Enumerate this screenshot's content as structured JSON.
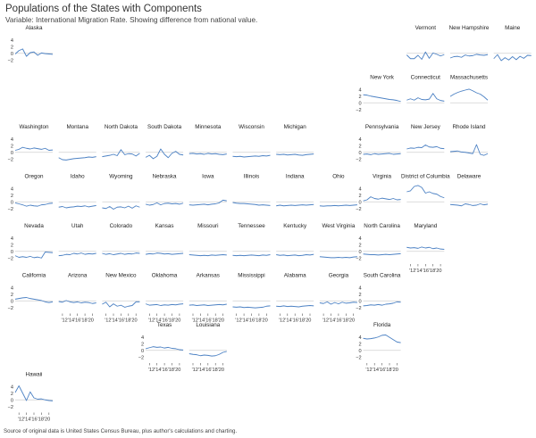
{
  "title": "Populations of the States with Components",
  "subtitle": "Variable: International Migration Rate. Showing difference from national value.",
  "source": "Source of original data is United States Census Bureau, plus author's calculations and charting.",
  "colors": {
    "line": "#4d82c4",
    "zero": "#d0d0d0",
    "panel_bg": "#ffffff",
    "text": "#333333"
  },
  "chart_data": {
    "type": "line",
    "layout": "small-multiples state grid map",
    "x": [
      2011,
      2012,
      2013,
      2014,
      2015,
      2016,
      2017,
      2018,
      2019,
      2020,
      2021
    ],
    "x_tick_labels": [
      "'12",
      "'14",
      "'16",
      "'18",
      "'20"
    ],
    "ylim": [
      -3,
      5
    ],
    "y_ticks": [
      4,
      2,
      0,
      -2
    ],
    "zero_line": true,
    "grid": false,
    "panels": [
      {
        "name": "Alaska",
        "col": 0,
        "row": 0,
        "values": [
          -0.2,
          0.8,
          1.3,
          -0.9,
          0.2,
          0.4,
          -0.6,
          0.1,
          -0.1,
          -0.2,
          -0.3
        ],
        "y_axis": true
      },
      {
        "name": "Vermont",
        "col": 9,
        "row": 0,
        "values": [
          -0.5,
          -1.6,
          -1.6,
          -0.6,
          -1.8,
          0.4,
          -1.5,
          0.1,
          -0.3,
          -0.8,
          -0.4
        ]
      },
      {
        "name": "New Hampshire",
        "col": 10,
        "row": 0,
        "values": [
          -1.4,
          -1.0,
          -0.9,
          -1.2,
          -0.5,
          -0.8,
          -0.7,
          -0.3,
          -0.5,
          -0.6,
          -0.4
        ]
      },
      {
        "name": "Maine",
        "col": 11,
        "row": 0,
        "values": [
          -1.6,
          -0.4,
          -2.2,
          -1.3,
          -2.0,
          -1.0,
          -1.9,
          -0.9,
          -1.5,
          -0.6,
          -0.7
        ]
      },
      {
        "name": "New York",
        "col": 8,
        "row": 1,
        "values": [
          2.4,
          2.3,
          2.0,
          1.8,
          1.6,
          1.4,
          1.2,
          1.0,
          0.9,
          0.7,
          0.4
        ],
        "y_axis": true
      },
      {
        "name": "Connecticut",
        "col": 9,
        "row": 1,
        "values": [
          0.8,
          1.2,
          0.8,
          1.5,
          1.0,
          0.9,
          1.1,
          2.8,
          1.2,
          0.7,
          0.5
        ]
      },
      {
        "name": "Massachusetts",
        "col": 10,
        "row": 1,
        "values": [
          1.9,
          2.6,
          3.1,
          3.5,
          3.8,
          4.1,
          3.6,
          3.0,
          2.6,
          1.8,
          0.8
        ]
      },
      {
        "name": "Washington",
        "col": 0,
        "row": 2,
        "values": [
          0.6,
          0.9,
          1.5,
          1.2,
          1.0,
          1.3,
          1.1,
          0.9,
          1.2,
          0.6,
          0.7
        ],
        "y_axis": true
      },
      {
        "name": "Montana",
        "col": 1,
        "row": 2,
        "values": [
          -1.6,
          -2.2,
          -2.3,
          -2.1,
          -1.9,
          -1.8,
          -1.7,
          -1.6,
          -1.4,
          -1.5,
          -1.3
        ]
      },
      {
        "name": "North Dakota",
        "col": 2,
        "row": 2,
        "values": [
          -1.3,
          -1.1,
          -0.9,
          -0.6,
          -1.0,
          0.8,
          -0.7,
          -0.4,
          -0.5,
          -1.1,
          -0.3
        ]
      },
      {
        "name": "South Dakota",
        "col": 3,
        "row": 2,
        "values": [
          -1.5,
          -0.9,
          -1.9,
          -1.2,
          1.0,
          -0.6,
          -1.6,
          -0.3,
          0.3,
          -0.6,
          -0.8
        ]
      },
      {
        "name": "Minnesota",
        "col": 4,
        "row": 2,
        "values": [
          -0.4,
          -0.3,
          -0.5,
          -0.4,
          -0.6,
          -0.3,
          -0.5,
          -0.4,
          -0.6,
          -0.7,
          -0.5
        ]
      },
      {
        "name": "Wisconsin",
        "col": 5,
        "row": 2,
        "values": [
          -1.2,
          -1.3,
          -1.2,
          -1.4,
          -1.3,
          -1.2,
          -1.1,
          -1.2,
          -1.0,
          -1.1,
          -0.9
        ]
      },
      {
        "name": "Michigan",
        "col": 6,
        "row": 2,
        "values": [
          -0.6,
          -0.7,
          -0.6,
          -0.8,
          -0.7,
          -0.6,
          -0.8,
          -0.9,
          -0.7,
          -0.6,
          -0.5
        ]
      },
      {
        "name": "Pennsylvania",
        "col": 8,
        "row": 2,
        "values": [
          -0.6,
          -0.5,
          -0.7,
          -0.4,
          -0.6,
          -0.5,
          -0.4,
          -0.3,
          -0.6,
          -0.5,
          -0.4
        ],
        "y_axis": true
      },
      {
        "name": "New Jersey",
        "col": 9,
        "row": 2,
        "values": [
          1.0,
          1.3,
          1.2,
          1.5,
          1.4,
          2.2,
          1.6,
          1.5,
          1.7,
          1.2,
          1.1
        ]
      },
      {
        "name": "Rhode Island",
        "col": 10,
        "row": 2,
        "values": [
          0.2,
          0.3,
          0.4,
          0.1,
          0.0,
          -0.2,
          -0.4,
          2.3,
          -0.6,
          -0.9,
          -0.4
        ]
      },
      {
        "name": "Oregon",
        "col": 0,
        "row": 3,
        "values": [
          -0.3,
          -0.6,
          -0.9,
          -1.3,
          -1.0,
          -1.2,
          -1.3,
          -0.9,
          -0.8,
          -0.5,
          -0.4
        ],
        "y_axis": true
      },
      {
        "name": "Idaho",
        "col": 1,
        "row": 3,
        "values": [
          -1.6,
          -1.4,
          -1.8,
          -1.6,
          -1.5,
          -1.3,
          -1.4,
          -1.2,
          -1.5,
          -1.3,
          -1.1
        ]
      },
      {
        "name": "Wyoming",
        "col": 2,
        "row": 3,
        "values": [
          -1.8,
          -2.0,
          -1.4,
          -2.2,
          -1.6,
          -1.5,
          -1.8,
          -1.3,
          -1.9,
          -1.2,
          -1.6
        ]
      },
      {
        "name": "Nebraska",
        "col": 3,
        "row": 3,
        "values": [
          -0.7,
          -1.0,
          -0.8,
          -0.3,
          -0.9,
          -0.5,
          -0.4,
          -0.6,
          -0.5,
          -0.7,
          -0.4
        ]
      },
      {
        "name": "Iowa",
        "col": 4,
        "row": 3,
        "values": [
          -0.9,
          -1.0,
          -0.9,
          -0.8,
          -0.7,
          -0.9,
          -0.7,
          -0.6,
          -0.3,
          0.5,
          0.3
        ]
      },
      {
        "name": "Illinois",
        "col": 5,
        "row": 3,
        "values": [
          -0.2,
          -0.4,
          -0.5,
          -0.5,
          -0.6,
          -0.7,
          -0.8,
          -1.0,
          -0.9,
          -1.0,
          -1.1
        ]
      },
      {
        "name": "Indiana",
        "col": 6,
        "row": 3,
        "values": [
          -1.2,
          -1.0,
          -1.2,
          -1.1,
          -1.0,
          -1.1,
          -1.0,
          -0.9,
          -1.0,
          -0.9,
          -0.8
        ]
      },
      {
        "name": "Ohio",
        "col": 7,
        "row": 3,
        "values": [
          -1.2,
          -1.3,
          -1.2,
          -1.2,
          -1.1,
          -1.2,
          -1.1,
          -1.0,
          -1.1,
          -1.0,
          -0.9
        ]
      },
      {
        "name": "Virginia",
        "col": 8,
        "row": 3,
        "values": [
          0.3,
          0.6,
          1.5,
          1.0,
          0.8,
          1.1,
          0.9,
          0.7,
          1.0,
          0.6,
          0.7
        ],
        "y_axis": true
      },
      {
        "name": "District of Columbia",
        "col": 9,
        "row": 3,
        "values": [
          3.0,
          3.3,
          4.6,
          4.9,
          4.3,
          2.6,
          3.0,
          2.5,
          2.3,
          1.6,
          1.2
        ]
      },
      {
        "name": "Delaware",
        "col": 10,
        "row": 3,
        "values": [
          -0.8,
          -0.9,
          -1.0,
          -1.2,
          -0.6,
          -0.8,
          -1.1,
          -1.0,
          -0.6,
          -0.9,
          -0.7
        ]
      },
      {
        "name": "Nevada",
        "col": 0,
        "row": 4,
        "values": [
          -1.3,
          -1.8,
          -1.6,
          -1.8,
          -1.5,
          -1.9,
          -1.7,
          -2.0,
          -0.2,
          -0.3,
          -0.4
        ],
        "y_axis": true
      },
      {
        "name": "Utah",
        "col": 1,
        "row": 4,
        "values": [
          -1.3,
          -1.2,
          -0.9,
          -1.0,
          -0.6,
          -0.8,
          -0.5,
          -0.9,
          -0.7,
          -0.8,
          -0.6
        ]
      },
      {
        "name": "Colorado",
        "col": 2,
        "row": 4,
        "values": [
          -0.6,
          -0.9,
          -0.7,
          -1.0,
          -0.8,
          -0.6,
          -0.9,
          -0.7,
          -0.8,
          -0.5,
          -0.6
        ]
      },
      {
        "name": "Kansas",
        "col": 3,
        "row": 4,
        "values": [
          -0.9,
          -0.7,
          -0.8,
          -0.5,
          -0.6,
          -0.8,
          -0.7,
          -0.9,
          -0.8,
          -0.7,
          -0.6
        ]
      },
      {
        "name": "Missouri",
        "col": 4,
        "row": 4,
        "values": [
          -1.0,
          -1.1,
          -1.2,
          -1.3,
          -1.2,
          -1.3,
          -1.1,
          -1.2,
          -1.1,
          -1.0,
          -1.1
        ]
      },
      {
        "name": "Tennessee",
        "col": 5,
        "row": 4,
        "values": [
          -1.2,
          -1.3,
          -1.2,
          -1.3,
          -1.2,
          -1.1,
          -1.2,
          -1.3,
          -1.1,
          -1.2,
          -1.0
        ]
      },
      {
        "name": "Kentucky",
        "col": 6,
        "row": 4,
        "values": [
          -1.0,
          -1.2,
          -1.1,
          -1.3,
          -1.2,
          -1.1,
          -1.3,
          -1.2,
          -1.0,
          -1.1,
          -0.9
        ]
      },
      {
        "name": "West Virginia",
        "col": 7,
        "row": 4,
        "values": [
          -1.6,
          -1.7,
          -1.8,
          -1.9,
          -1.9,
          -1.8,
          -1.9,
          -1.8,
          -1.9,
          -1.7,
          -1.6
        ]
      },
      {
        "name": "North Carolina",
        "col": 8,
        "row": 4,
        "values": [
          -0.8,
          -0.9,
          -1.0,
          -1.0,
          -1.1,
          -1.0,
          -0.9,
          -1.0,
          -0.9,
          -0.8,
          -0.7
        ],
        "y_axis": true
      },
      {
        "name": "Maryland",
        "col": 9,
        "row": 4,
        "values": [
          1.2,
          1.0,
          1.1,
          0.9,
          1.3,
          1.0,
          1.2,
          0.8,
          1.0,
          0.7,
          0.6
        ],
        "x_axis": true
      },
      {
        "name": "California",
        "col": 0,
        "row": 5,
        "values": [
          0.5,
          0.7,
          0.9,
          1.0,
          0.7,
          0.5,
          0.3,
          0.1,
          -0.3,
          -0.5,
          -0.3
        ],
        "y_axis": true
      },
      {
        "name": "Arizona",
        "col": 1,
        "row": 5,
        "values": [
          -0.2,
          -0.4,
          0.1,
          -0.3,
          -0.5,
          -0.3,
          -0.6,
          -0.4,
          -0.5,
          -0.8,
          -0.6
        ]
      },
      {
        "name": "New Mexico",
        "col": 2,
        "row": 5,
        "values": [
          -1.0,
          -0.4,
          -1.8,
          -0.9,
          -1.6,
          -1.3,
          -1.9,
          -1.6,
          -1.4,
          -0.3,
          -0.3
        ]
      },
      {
        "name": "Oklahoma",
        "col": 3,
        "row": 5,
        "values": [
          -0.9,
          -1.3,
          -1.2,
          -1.1,
          -1.4,
          -1.2,
          -1.3,
          -1.1,
          -1.2,
          -1.0,
          -0.9
        ]
      },
      {
        "name": "Arkansas",
        "col": 4,
        "row": 5,
        "values": [
          -1.3,
          -1.2,
          -1.4,
          -1.3,
          -1.2,
          -1.4,
          -1.3,
          -1.2,
          -1.1,
          -1.2,
          -1.0
        ]
      },
      {
        "name": "Mississippi",
        "col": 5,
        "row": 5,
        "values": [
          -1.8,
          -1.9,
          -1.8,
          -2.0,
          -1.9,
          -2.0,
          -2.1,
          -2.0,
          -1.9,
          -1.6,
          -1.5
        ]
      },
      {
        "name": "Alabama",
        "col": 6,
        "row": 5,
        "values": [
          -1.6,
          -1.7,
          -1.5,
          -1.7,
          -1.6,
          -1.7,
          -1.8,
          -1.6,
          -1.5,
          -1.4,
          -1.5
        ]
      },
      {
        "name": "Georgia",
        "col": 7,
        "row": 5,
        "values": [
          -0.6,
          -0.8,
          -0.3,
          -1.0,
          -0.5,
          -0.9,
          -0.4,
          -0.7,
          -0.6,
          -0.4,
          -0.5
        ]
      },
      {
        "name": "South Carolina",
        "col": 8,
        "row": 5,
        "values": [
          -1.5,
          -1.4,
          -1.2,
          -1.3,
          -1.1,
          -1.3,
          -1.0,
          -0.9,
          -0.7,
          -0.3,
          -0.4
        ],
        "y_axis": true
      },
      {
        "name": "Texas",
        "col": 3,
        "row": 6,
        "values": [
          0.5,
          0.8,
          1.1,
          0.9,
          1.0,
          0.7,
          0.9,
          0.6,
          0.5,
          0.2,
          0.1
        ],
        "y_axis": true
      },
      {
        "name": "Louisiana",
        "col": 4,
        "row": 6,
        "values": [
          -1.0,
          -1.2,
          -1.3,
          -1.6,
          -1.4,
          -1.5,
          -1.7,
          -1.6,
          -1.2,
          -0.6,
          -0.3
        ]
      },
      {
        "name": "Florida",
        "col": 8,
        "row": 6,
        "values": [
          3.6,
          3.4,
          3.5,
          3.7,
          4.0,
          4.5,
          4.6,
          3.9,
          3.2,
          2.5,
          2.3
        ],
        "y_axis": true,
        "x_axis": true
      },
      {
        "name": "Hawaii",
        "col": 0,
        "row": 7,
        "values": [
          2.2,
          4.2,
          2.0,
          -0.2,
          2.4,
          0.6,
          0.2,
          0.3,
          0.0,
          -0.2,
          -0.3
        ],
        "y_axis": true,
        "x_axis": true
      }
    ],
    "x_axis_panels": [
      "Arizona",
      "New Mexico",
      "Oklahoma",
      "Arkansas",
      "Mississippi",
      "Alabama",
      "Georgia",
      "Texas",
      "Louisiana"
    ]
  }
}
